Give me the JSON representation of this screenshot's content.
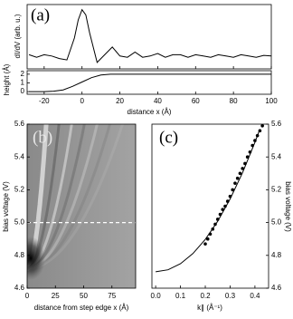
{
  "chart_data": [
    {
      "type": "line",
      "panel_label": "(a)",
      "ylabel": "dI/dV (arb. u.)",
      "color": "#000000",
      "x": [
        -28,
        -24,
        -20,
        -16,
        -12,
        -8,
        -4,
        -2,
        0,
        2,
        4,
        8,
        12,
        16,
        20,
        24,
        28,
        32,
        36,
        40,
        44,
        48,
        52,
        56,
        60,
        64,
        68,
        72,
        76,
        80,
        84,
        88,
        92,
        96,
        100
      ],
      "values": [
        0.3,
        0.1,
        0.3,
        0.2,
        0.0,
        -0.1,
        1.6,
        3.0,
        3.8,
        3.4,
        2.0,
        -0.3,
        0.3,
        0.9,
        0.2,
        0.1,
        0.5,
        0.1,
        0.2,
        0.4,
        0.1,
        0.3,
        0.3,
        0.1,
        0.3,
        0.2,
        0.1,
        0.3,
        0.2,
        0.1,
        0.3,
        0.2,
        0.1,
        0.25,
        0.2
      ],
      "xlim": [
        -29,
        100
      ],
      "ylim": [
        -0.8,
        4.2
      ]
    },
    {
      "type": "line",
      "ylabel": "height (Å)",
      "xlabel": "distance x (Å)",
      "color": "#000000",
      "x": [
        -28,
        -20,
        -15,
        -10,
        -5,
        0,
        5,
        10,
        15,
        20,
        100
      ],
      "values": [
        0,
        0,
        0.05,
        0.2,
        0.6,
        1.1,
        1.6,
        1.9,
        2.0,
        2.0,
        2.0
      ],
      "xlim": [
        -29,
        100
      ],
      "ylim": [
        -0.3,
        2.4
      ],
      "xticks": [
        -20,
        0,
        20,
        40,
        60,
        80,
        100
      ],
      "yticks": [
        0,
        1,
        2
      ]
    },
    {
      "type": "image",
      "panel_label": "(b)",
      "ylabel": "bias voltage (V)",
      "xlabel": "distance from step edge x (Å)",
      "xlim": [
        0,
        96
      ],
      "ylim": [
        4.6,
        5.6
      ],
      "xticks": [
        0,
        25,
        50,
        75
      ],
      "yticks": [
        4.6,
        4.8,
        {
          "value": 5,
          "label": "5.0"
        },
        5.2,
        5.4,
        5.6
      ],
      "hline": 5
    },
    {
      "type": "scatter",
      "panel_label": "(c)",
      "ylabel": "bias voltage (V)",
      "xlabel": "k∥ (Å⁻¹)",
      "xlim": [
        -0.015,
        0.455
      ],
      "ylim": [
        4.6,
        5.6
      ],
      "xticks": [
        {
          "value": 0,
          "label": "0.0"
        },
        0.1,
        0.2,
        0.3,
        0.4
      ],
      "yticks": [
        4.6,
        4.8,
        {
          "value": 5,
          "label": "5.0"
        },
        5.2,
        5.4,
        5.6
      ],
      "series": [
        {
          "kind": "scatter",
          "color": "#000000",
          "x": [
            0.2,
            0.21,
            0.22,
            0.23,
            0.24,
            0.25,
            0.26,
            0.27,
            0.28,
            0.29,
            0.3,
            0.31,
            0.32,
            0.33,
            0.34,
            0.35,
            0.36,
            0.37,
            0.38,
            0.39,
            0.4,
            0.41,
            0.42,
            0.43
          ],
          "values": [
            4.87,
            4.9,
            4.93,
            4.96,
            4.99,
            5.02,
            5.05,
            5.08,
            5.1,
            5.13,
            5.16,
            5.2,
            5.24,
            5.27,
            5.3,
            5.33,
            5.36,
            5.4,
            5.43,
            5.47,
            5.5,
            5.53,
            5.56,
            5.59
          ]
        },
        {
          "kind": "line",
          "color": "#000000",
          "x": [
            0,
            0.05,
            0.1,
            0.15,
            0.2,
            0.25,
            0.3,
            0.35,
            0.4,
            0.42
          ],
          "values": [
            4.7,
            4.712,
            4.749,
            4.811,
            4.897,
            5.008,
            5.144,
            5.304,
            5.489,
            5.57
          ]
        }
      ]
    }
  ]
}
